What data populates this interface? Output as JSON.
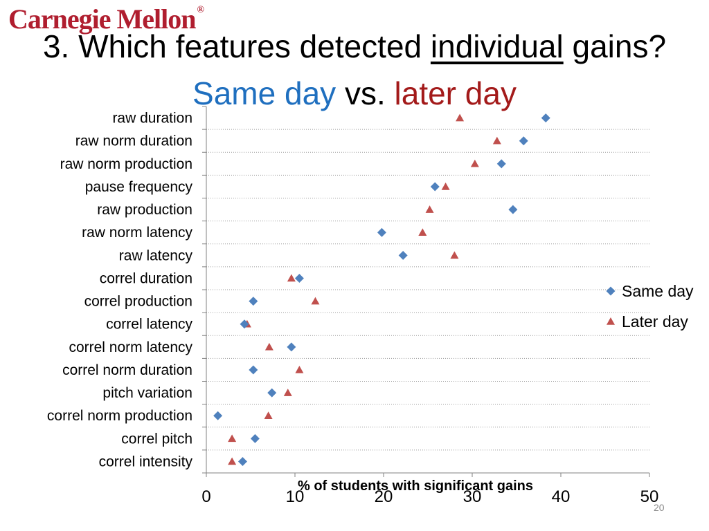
{
  "logo": {
    "text": "Carnegie Mellon",
    "mark": "®"
  },
  "title": {
    "prefix": "3. Which features detected ",
    "underlined": "individual",
    "suffix": " gains?"
  },
  "subtitle": {
    "part1": "Same day",
    "part2": " vs. ",
    "part3": "later day",
    "color1": "#1f6fbf",
    "color3": "#a31a1a"
  },
  "page_number": "20",
  "chart_data": {
    "type": "scatter",
    "orientation": "horizontal",
    "categories": [
      "raw duration",
      "raw  norm duration",
      "raw  norm production",
      "pause frequency",
      "raw production",
      "raw norm latency",
      "raw latency",
      "correl duration",
      "correl production",
      "correl latency",
      "correl norm latency",
      "correl norm duration",
      "pitch variation",
      "correl norm production",
      "correl pitch",
      "correl intensity"
    ],
    "series": [
      {
        "name": "Same day",
        "marker": "diamond",
        "color": "#4f81bd",
        "values": [
          38.3,
          35.8,
          33.3,
          25.8,
          34.6,
          19.8,
          22.2,
          10.5,
          5.3,
          4.3,
          9.6,
          5.3,
          7.4,
          1.3,
          5.5,
          4.1
        ]
      },
      {
        "name": "Later day",
        "marker": "triangle",
        "color": "#c0504d",
        "values": [
          28.6,
          32.8,
          30.3,
          27.0,
          25.2,
          24.4,
          28.0,
          9.6,
          12.3,
          4.6,
          7.1,
          10.5,
          9.2,
          7.0,
          2.9,
          2.9
        ]
      }
    ],
    "xlim": [
      0,
      50
    ],
    "xticks": [
      "0",
      "10",
      "20",
      "30",
      "40",
      "50"
    ],
    "xlabel": "% of students with significant gains",
    "grid": "dotted-horizontal",
    "legend": "right"
  }
}
